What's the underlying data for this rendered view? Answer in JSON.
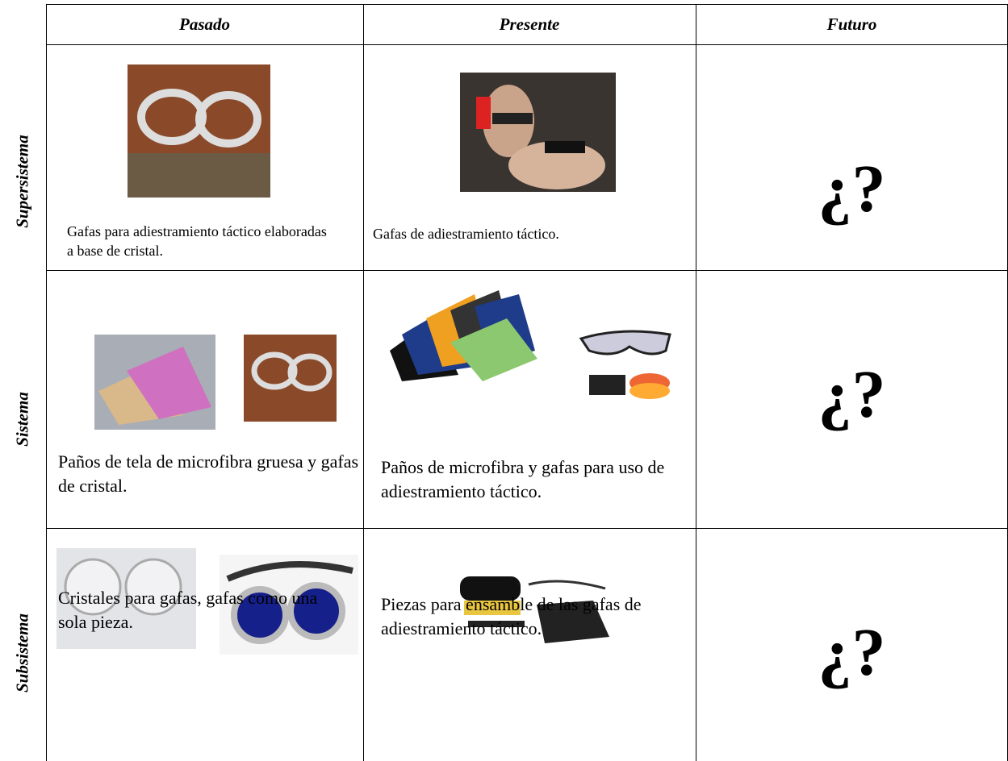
{
  "table": {
    "header": [
      "Pasado",
      "Presente",
      "Futuro"
    ],
    "rows": [
      {
        "label": "Supersistema",
        "cells": [
          "Gafas para adiestramiento táctico elaboradas a base de  cristal.",
          "Gafas de adiestramiento táctico.",
          "¿?"
        ]
      },
      {
        "label": "Sistema",
        "cells": [
          "Paños de tela de microfibra gruesa y gafas de cristal.",
          "Paños de microfibra y gafas para uso de adiestramiento táctico.",
          "¿?"
        ]
      },
      {
        "label": "Subsistema",
        "cells": [
          "Cristales para gafas, gafas como una sola pieza.",
          "Piezas para ensamble de las gafas de adiestramiento táctico.",
          "¿?"
        ]
      }
    ]
  }
}
